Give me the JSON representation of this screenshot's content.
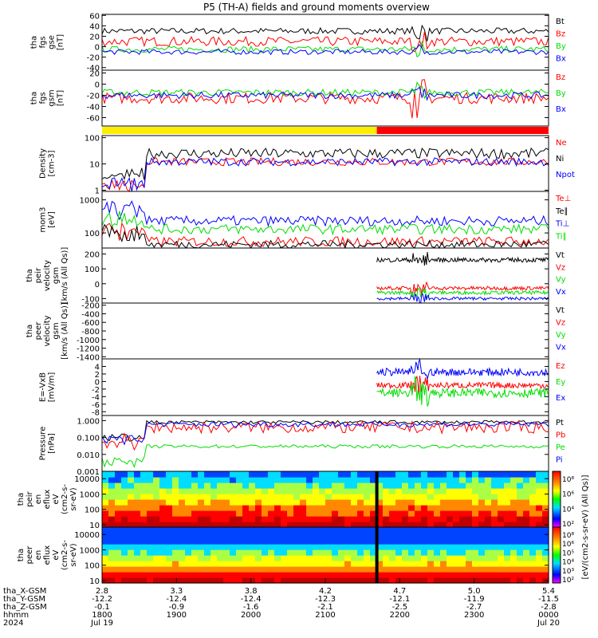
{
  "title": "P5 (TH-A) fields and ground moments overview",
  "colors": {
    "black": "#000000",
    "red": "#ff0000",
    "green": "#00dd00",
    "blue": "#0000ff",
    "yellow": "#ffee00"
  },
  "chart_data": [
    {
      "type": "line",
      "panel": "fgs_gse",
      "ylabel": [
        "tha",
        "fgs",
        "gse",
        "[nT]"
      ],
      "ylim": [
        -45,
        62
      ],
      "yticks": [
        "60",
        "40",
        "20",
        "0",
        "-20",
        "-40"
      ],
      "ytick_values": [
        60,
        40,
        20,
        0,
        -20,
        -40
      ],
      "series": [
        {
          "name": "Bt",
          "color": "black",
          "base": 30,
          "noise": 6
        },
        {
          "name": "Bz",
          "color": "red",
          "base": 10,
          "noise": 9
        },
        {
          "name": "By",
          "color": "green",
          "base": -5,
          "noise": 6
        },
        {
          "name": "Bx",
          "color": "blue",
          "base": -10,
          "noise": 5
        }
      ]
    },
    {
      "type": "line",
      "panel": "fgs_gsm",
      "ylabel": [
        "tha",
        "fgs",
        "gsm",
        "[nT]"
      ],
      "ylim": [
        -75,
        25
      ],
      "yticks": [
        "20",
        "0",
        "-20",
        "-40",
        "-60"
      ],
      "ytick_values": [
        20,
        0,
        -20,
        -40,
        -60
      ],
      "series": [
        {
          "name": "Bz",
          "color": "red",
          "base": -25,
          "noise": 10
        },
        {
          "name": "By",
          "color": "green",
          "base": -15,
          "noise": 6
        },
        {
          "name": "Bx",
          "color": "blue",
          "base": -20,
          "noise": 6
        }
      ]
    },
    {
      "type": "bar",
      "panel": "mode_bar",
      "segments": [
        {
          "color": "yellow",
          "x_from": 2.8,
          "x_to": 4.4
        },
        {
          "color": "red",
          "x_from": 4.4,
          "x_to": 5.4
        }
      ]
    },
    {
      "type": "line",
      "panel": "density",
      "ylabel": [
        "Density",
        "[cm-3]"
      ],
      "ylog": true,
      "ylim": [
        0.9,
        120
      ],
      "yticks": [
        "100",
        "10",
        "1"
      ],
      "ytick_values": [
        100,
        10,
        1
      ],
      "series": [
        {
          "name": "Ne",
          "color": "red",
          "base": 12,
          "noise": 0.15
        },
        {
          "name": "Ni",
          "color": "black",
          "base": 25,
          "noise": 0.2
        },
        {
          "name": "Npot",
          "color": "blue",
          "base": 12,
          "noise": 0.15
        }
      ]
    },
    {
      "type": "line",
      "panel": "temperature",
      "ylabel": [
        "mom3",
        "[eV]"
      ],
      "ylog": true,
      "ylim": [
        35,
        1800
      ],
      "yticks": [
        "1000",
        "100"
      ],
      "ytick_values": [
        1000,
        100
      ],
      "series": [
        {
          "name": "Te⊥",
          "color": "red",
          "base": 55,
          "noise": 0.15
        },
        {
          "name": "Te∥",
          "color": "black",
          "base": 45,
          "noise": 0.12
        },
        {
          "name": "Ti⊥",
          "color": "blue",
          "base": 230,
          "noise": 0.15
        },
        {
          "name": "Ti∥",
          "color": "green",
          "base": 130,
          "noise": 0.15
        }
      ]
    },
    {
      "type": "line",
      "panel": "peir_velocity",
      "ylabel": [
        "tha",
        "peir",
        "velocity",
        "gsm",
        "[km/s (All Qs)]"
      ],
      "ylim": [
        -130,
        240
      ],
      "yticks": [
        "200",
        "100",
        "0",
        "-100"
      ],
      "ytick_values": [
        200,
        100,
        0,
        -100
      ],
      "x_data_start": 4.4,
      "series": [
        {
          "name": "Vt",
          "color": "black",
          "base": 160,
          "noise": 15
        },
        {
          "name": "Vz",
          "color": "red",
          "base": -30,
          "noise": 12
        },
        {
          "name": "Vy",
          "color": "green",
          "base": -60,
          "noise": 12
        },
        {
          "name": "Vx",
          "color": "blue",
          "base": -100,
          "noise": 10
        }
      ]
    },
    {
      "type": "line",
      "panel": "peer_velocity",
      "ylabel": [
        "tha",
        "peer",
        "velocity",
        "gsm",
        "[km/s (All Qs)]"
      ],
      "ylim": [
        -1450,
        -150
      ],
      "yticks": [
        "-200",
        "-400",
        "-600",
        "-800",
        "-1000",
        "-1200",
        "-1400"
      ],
      "ytick_values": [
        -200,
        -400,
        -600,
        -800,
        -1000,
        -1200,
        -1400
      ],
      "series": [
        {
          "name": "Vt",
          "color": "black"
        },
        {
          "name": "Vz",
          "color": "red"
        },
        {
          "name": "Vy",
          "color": "green"
        },
        {
          "name": "Vx",
          "color": "blue"
        }
      ]
    },
    {
      "type": "line",
      "panel": "e_field",
      "ylabel": [
        "E=-VxB",
        "[mV/m]"
      ],
      "ylim": [
        -9,
        6
      ],
      "yticks": [
        "4",
        "2",
        "0",
        "-2",
        "-4",
        "-6",
        "-8"
      ],
      "ytick_values": [
        4,
        2,
        0,
        -2,
        -4,
        -6,
        -8
      ],
      "x_data_start": 4.4,
      "series": [
        {
          "name": "Ez",
          "color": "red",
          "base": -1,
          "noise": 0.8
        },
        {
          "name": "Ey",
          "color": "green",
          "base": -3,
          "noise": 1.2
        },
        {
          "name": "Ex",
          "color": "blue",
          "base": 2.5,
          "noise": 1
        }
      ]
    },
    {
      "type": "line",
      "panel": "pressure",
      "ylabel": [
        "Pressure",
        "[nPa]"
      ],
      "ylog": true,
      "ylim": [
        0.001,
        2
      ],
      "yticks": [
        "1.000",
        "0.100",
        "0.010",
        "0.001"
      ],
      "ytick_values": [
        1,
        0.1,
        0.01,
        0.001
      ],
      "series": [
        {
          "name": "Pt",
          "color": "black",
          "base": 0.8,
          "noise": 0.1
        },
        {
          "name": "Pb",
          "color": "red",
          "base": 0.4,
          "noise": 0.35
        },
        {
          "name": "Pe",
          "color": "green",
          "base": 0.03,
          "noise": 0.1
        },
        {
          "name": "Pi",
          "color": "blue",
          "base": 0.6,
          "noise": 0.15
        }
      ]
    },
    {
      "type": "heatmap",
      "panel": "peir_spectrogram",
      "ylabel": [
        "tha",
        "peir",
        "en",
        "eflux",
        "eV",
        "(cm2-s-",
        "sr-eV)"
      ],
      "ylog": true,
      "ylim": [
        7,
        30000
      ],
      "yticks": [
        "10000",
        "1000",
        "100",
        "10"
      ],
      "ytick_values": [
        10000,
        1000,
        100,
        10
      ]
    },
    {
      "type": "heatmap",
      "panel": "peer_spectrogram",
      "ylabel": [
        "tha",
        "peer",
        "en",
        "eflux",
        "eV",
        "(cm2-s-",
        "sr-eV)"
      ],
      "ylog": true,
      "ylim": [
        7,
        30000
      ],
      "yticks": [
        "10000",
        "1000",
        "100",
        "10"
      ],
      "ytick_values": [
        10000,
        1000,
        100,
        10
      ]
    }
  ],
  "colorbar": {
    "label": "[eV/(cm2-s-sr-eV) (All Qs)]",
    "top": {
      "ticks": [
        "10⁸",
        "10⁶",
        "10⁴",
        "10²"
      ]
    },
    "bottom": {
      "ticks": [
        "10⁸",
        "10⁶",
        "10⁵",
        "10⁴",
        "10³",
        "10²"
      ]
    }
  },
  "x_axis": {
    "xlim": [
      2.8,
      5.4
    ],
    "rows": [
      {
        "label": "tha_X-GSM",
        "values": [
          "2.8",
          "3.3",
          "3.8",
          "4.2",
          "4.7",
          "5.0",
          "5.4"
        ]
      },
      {
        "label": "tha_Y-GSM",
        "values": [
          "-12.2",
          "-12.4",
          "-12.4",
          "-12.3",
          "-12.1",
          "-11.9",
          "-11.5"
        ]
      },
      {
        "label": "tha_Z-GSM",
        "values": [
          "-0.1",
          "-0.9",
          "-1.6",
          "-2.1",
          "-2.5",
          "-2.7",
          "-2.8"
        ]
      },
      {
        "label": "hhmm",
        "values": [
          "1800",
          "1900",
          "2000",
          "2100",
          "2200",
          "2300",
          "0000"
        ]
      },
      {
        "label": "2024",
        "values": [
          "Jul 19",
          "",
          "",
          "",
          "",
          "",
          "Jul 20"
        ]
      }
    ]
  }
}
